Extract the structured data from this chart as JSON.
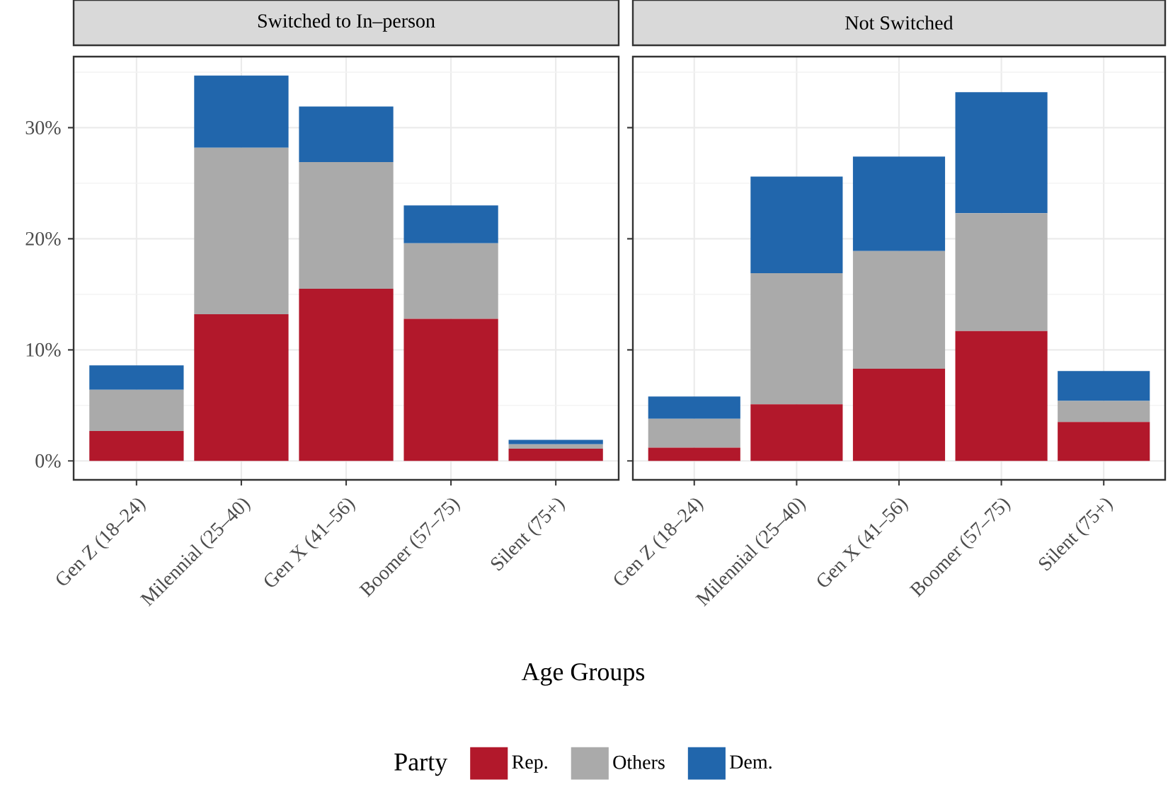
{
  "chart_data": [
    {
      "type": "bar",
      "title": "Switched to In–person",
      "xlabel": "Age Groups",
      "legend_title": "Party",
      "legend": "bottom",
      "stacked": true,
      "grid": true,
      "categories": [
        "Gen Z (18–24)",
        "Milennial (25–40)",
        "Gen X (41–56)",
        "Boomer (57–75)",
        "Silent (75+)"
      ],
      "ylim": [
        -1.7,
        36.4
      ],
      "yticks": [
        {
          "value": 0,
          "label": "0%"
        },
        {
          "value": 10,
          "label": "10%"
        },
        {
          "value": 20,
          "label": "20%"
        },
        {
          "value": 30,
          "label": "30%"
        }
      ],
      "series": [
        {
          "name": "Rep.",
          "color": "#b2182b",
          "values": [
            2.7,
            13.2,
            15.5,
            12.8,
            1.1
          ]
        },
        {
          "name": "Others",
          "color": "#aaaaaa",
          "values": [
            3.7,
            15.0,
            11.4,
            6.8,
            0.4
          ]
        },
        {
          "name": "Dem.",
          "color": "#2166ac",
          "values": [
            2.2,
            6.5,
            5.0,
            3.4,
            0.4
          ]
        }
      ]
    },
    {
      "type": "bar",
      "title": "Not Switched",
      "stacked": true,
      "grid": true,
      "tick_labels": "x",
      "categories": [
        "Gen Z (18–24)",
        "Milennial (25–40)",
        "Gen X (41–56)",
        "Boomer (57–75)",
        "Silent (75+)"
      ],
      "ylim": [
        -1.7,
        36.4
      ],
      "yticks": [
        {
          "value": 0,
          "label": null
        },
        {
          "value": 10,
          "label": null
        },
        {
          "value": 20,
          "label": null
        },
        {
          "value": 30,
          "label": null
        }
      ],
      "series": [
        {
          "color": "#b2182b",
          "values": [
            1.2,
            5.1,
            8.3,
            11.7,
            3.5
          ]
        },
        {
          "color": "#aaaaaa",
          "values": [
            2.6,
            11.8,
            10.6,
            10.6,
            1.9
          ]
        },
        {
          "color": "#2166ac",
          "values": [
            2.0,
            8.7,
            8.5,
            10.9,
            2.7
          ]
        }
      ]
    }
  ]
}
